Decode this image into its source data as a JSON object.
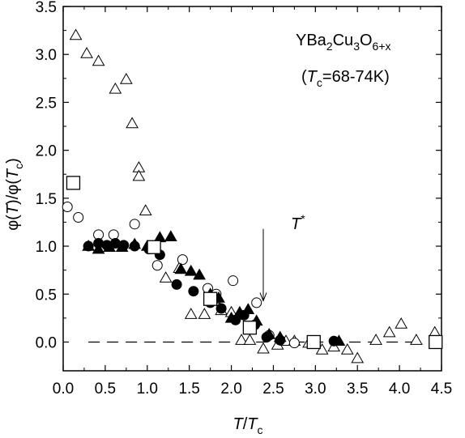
{
  "chart_data": {
    "type": "scatter",
    "xlim": [
      0.0,
      4.5
    ],
    "ylim": [
      -0.3,
      3.5
    ],
    "x_ticks": [
      "0.0",
      "0.5",
      "1.0",
      "1.5",
      "2.0",
      "2.5",
      "3.0",
      "3.5",
      "4.0",
      "4.5"
    ],
    "y_ticks": [
      "0.0",
      "0.5",
      "1.0",
      "1.5",
      "2.0",
      "2.5",
      "3.0",
      "3.5"
    ],
    "x_tick_values": [
      0.0,
      0.5,
      1.0,
      1.5,
      2.0,
      2.5,
      3.0,
      3.5,
      4.0,
      4.5
    ],
    "y_tick_values": [
      0.0,
      0.5,
      1.0,
      1.5,
      2.0,
      2.5,
      3.0,
      3.5
    ],
    "xlabel": {
      "italic": "T",
      "sep": "/",
      "italic2": "T",
      "sub": "c"
    },
    "ylabel": {
      "pre": "φ(",
      "italic": "T",
      "mid": ")/φ(",
      "italic2": "T",
      "sub": "c",
      "post": ")"
    },
    "annotations": {
      "compound": {
        "a": "YBa",
        "s1": "2",
        "b": "Cu",
        "s2": "3",
        "c": "O",
        "s3": "6+x"
      },
      "tc_range": {
        "pre": "(",
        "italic": "T",
        "sub": "c",
        "post": "=68-74K)"
      },
      "tstar": {
        "italic": "T",
        "sup": "*"
      }
    },
    "tstar_arrow": {
      "x": 2.38,
      "y_from": 1.18,
      "y_to": 0.43
    },
    "zero_reference_line": {
      "y": 0.0,
      "style": "dashed"
    },
    "series": [
      {
        "marker": "open-triangle",
        "points": [
          [
            0.15,
            3.2
          ],
          [
            0.28,
            3.01
          ],
          [
            0.42,
            2.93
          ],
          [
            0.62,
            2.64
          ],
          [
            0.75,
            2.74
          ],
          [
            0.82,
            2.28
          ],
          [
            0.9,
            1.82
          ],
          [
            0.9,
            1.73
          ],
          [
            0.98,
            1.37
          ],
          [
            1.22,
            0.67
          ],
          [
            1.38,
            0.77
          ],
          [
            1.52,
            0.29
          ],
          [
            1.68,
            0.29
          ],
          [
            1.8,
            0.45
          ],
          [
            1.88,
            0.33
          ],
          [
            2.0,
            0.31
          ],
          [
            2.12,
            0.02
          ],
          [
            2.22,
            0.02
          ],
          [
            2.38,
            -0.07
          ],
          [
            2.55,
            -0.03
          ],
          [
            2.65,
            0.01
          ],
          [
            2.75,
            0.01
          ],
          [
            2.92,
            -0.01
          ],
          [
            3.08,
            -0.08
          ],
          [
            3.22,
            -0.05
          ],
          [
            3.38,
            -0.08
          ],
          [
            3.5,
            -0.17
          ],
          [
            3.72,
            0.02
          ],
          [
            3.88,
            0.1
          ],
          [
            4.02,
            0.19
          ],
          [
            4.2,
            0.02
          ],
          [
            4.42,
            0.1
          ]
        ]
      },
      {
        "marker": "open-circle",
        "points": [
          [
            0.05,
            1.41
          ],
          [
            0.18,
            1.3
          ],
          [
            0.42,
            1.12
          ],
          [
            0.6,
            1.12
          ],
          [
            0.85,
            1.23
          ],
          [
            1.12,
            0.8
          ],
          [
            1.42,
            0.86
          ],
          [
            1.72,
            0.56
          ],
          [
            1.82,
            0.5
          ],
          [
            2.02,
            0.64
          ],
          [
            2.3,
            0.41
          ],
          [
            2.45,
            0.07
          ],
          [
            2.75,
            -0.01
          ]
        ]
      },
      {
        "marker": "filled-circle",
        "points": [
          [
            0.3,
            1.0
          ],
          [
            0.42,
            1.03
          ],
          [
            0.52,
            1.01
          ],
          [
            0.62,
            1.03
          ],
          [
            0.72,
            1.01
          ],
          [
            0.85,
            1.0
          ],
          [
            1.02,
            0.97
          ],
          [
            1.15,
            0.91
          ],
          [
            1.35,
            0.6
          ],
          [
            1.55,
            0.53
          ],
          [
            1.75,
            0.41
          ],
          [
            1.88,
            0.35
          ],
          [
            2.05,
            0.23
          ],
          [
            2.15,
            0.28
          ],
          [
            2.28,
            0.18
          ],
          [
            2.42,
            0.05
          ],
          [
            2.58,
            0.02
          ],
          [
            3.22,
            0.01
          ]
        ]
      },
      {
        "marker": "filled-triangle",
        "points": [
          [
            0.3,
            1.0
          ],
          [
            0.42,
            0.97
          ],
          [
            0.55,
            0.99
          ],
          [
            0.7,
            0.99
          ],
          [
            0.85,
            1.02
          ],
          [
            1.0,
            1.0
          ],
          [
            1.15,
            1.09
          ],
          [
            1.28,
            1.1
          ],
          [
            1.4,
            0.76
          ],
          [
            1.52,
            0.74
          ],
          [
            1.62,
            0.7
          ],
          [
            1.75,
            0.5
          ],
          [
            1.85,
            0.46
          ],
          [
            2.0,
            0.25
          ],
          [
            2.1,
            0.31
          ],
          [
            2.2,
            0.34
          ],
          [
            2.3,
            0.22
          ],
          [
            2.45,
            0.08
          ],
          [
            2.58,
            0.05
          ],
          [
            3.28,
            0.01
          ]
        ]
      },
      {
        "marker": "open-square",
        "points": [
          [
            0.12,
            1.66
          ],
          [
            1.08,
            0.99
          ],
          [
            1.75,
            0.45
          ],
          [
            2.22,
            0.15
          ],
          [
            2.98,
            0.0
          ],
          [
            4.43,
            0.0
          ]
        ]
      }
    ]
  }
}
